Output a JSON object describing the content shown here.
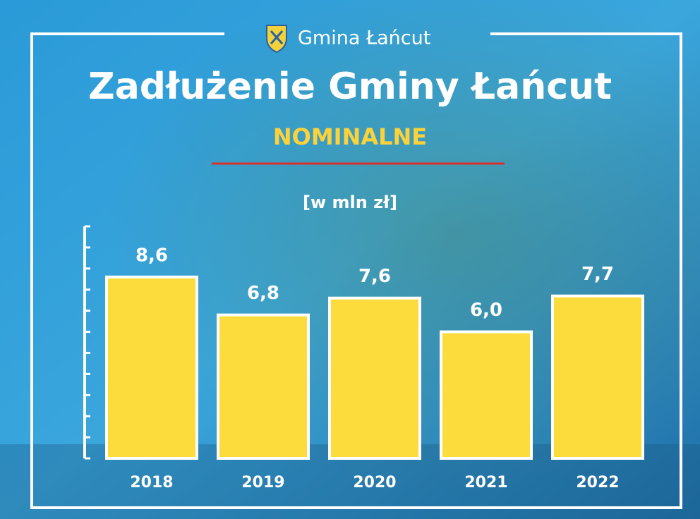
{
  "chart_data": {
    "type": "bar",
    "header": "Gmina Łańcut",
    "title": "Zadłużenie Gminy Łańcut",
    "subtitle": "NOMINALNE",
    "unit_label": "[w mln zł]",
    "categories": [
      "2018",
      "2019",
      "2020",
      "2021",
      "2022"
    ],
    "values": [
      8.6,
      6.8,
      7.6,
      6.0,
      7.7
    ],
    "value_labels": [
      "8,6",
      "6,8",
      "7,6",
      "6,0",
      "7,7"
    ],
    "color": "#fcdc3c",
    "ylim": [
      0,
      11
    ],
    "yticks": [
      0,
      1,
      2,
      3,
      4,
      5,
      6,
      7,
      8,
      9,
      10,
      11
    ],
    "grid": false
  }
}
